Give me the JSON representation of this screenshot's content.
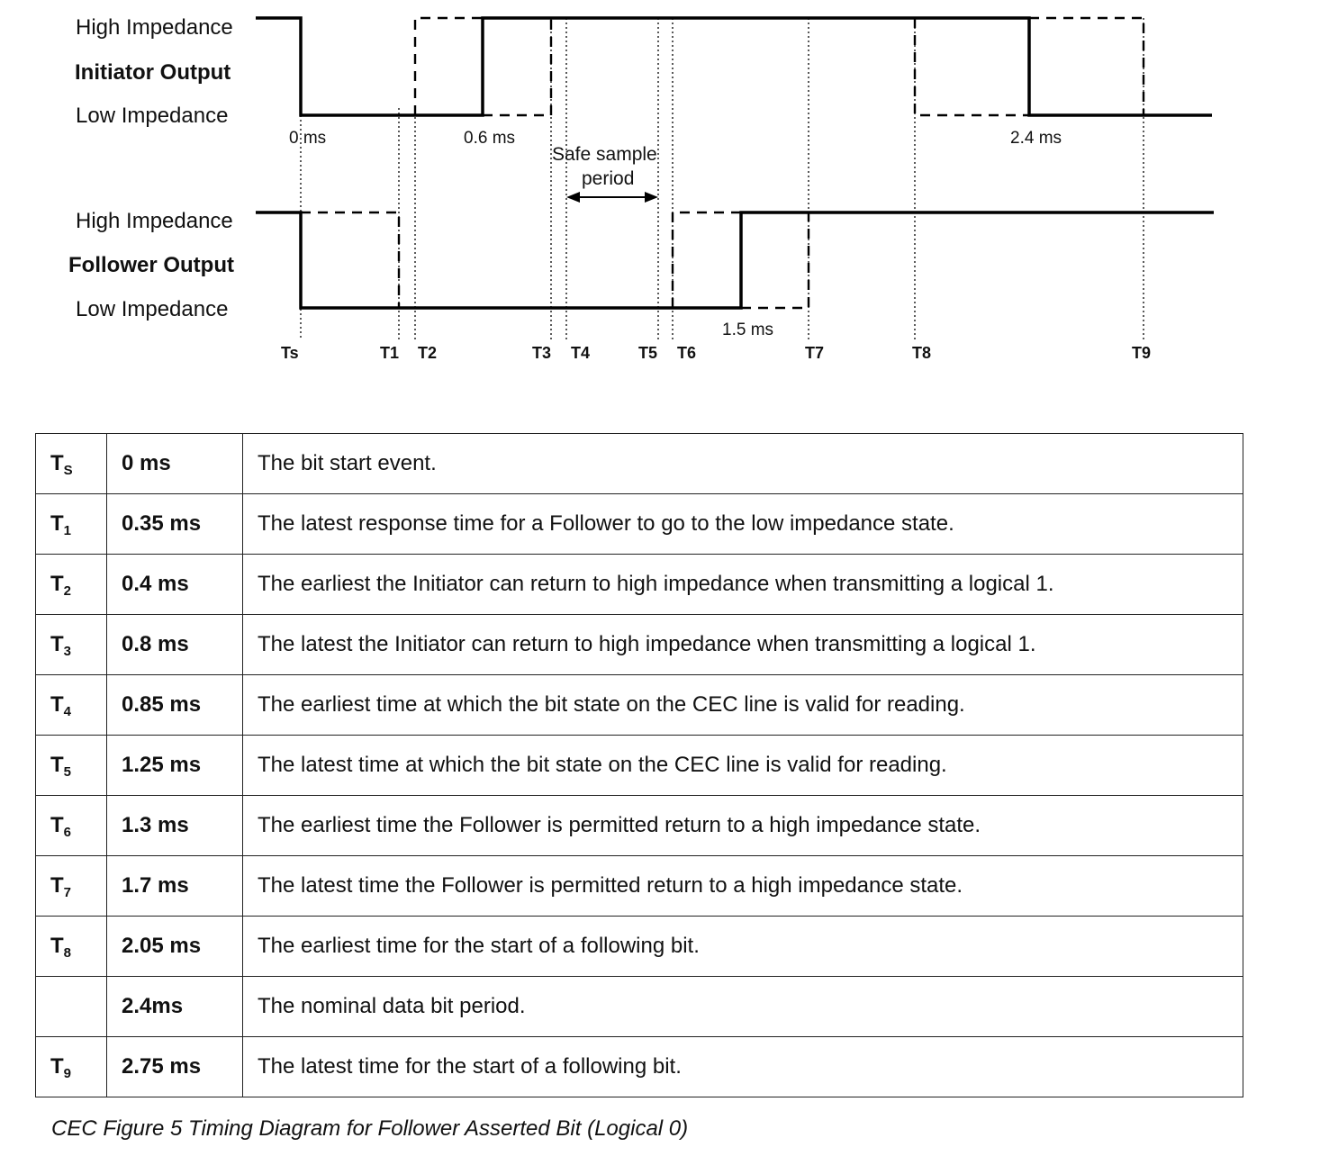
{
  "diagram": {
    "initiator": {
      "high_label": "High Impedance",
      "name": "Initiator Output",
      "low_label": "Low Impedance"
    },
    "follower": {
      "high_label": "High Impedance",
      "name": "Follower Output",
      "low_label": "Low Impedance"
    },
    "annotations": {
      "zero_ms": "0 ms",
      "init_high_time": "0.6 ms",
      "bit_period": "2.4 ms",
      "follower_high_time": "1.5 ms",
      "safe_sample_line1": "Safe sample",
      "safe_sample_line2": "period"
    },
    "time_markers": [
      "Ts",
      "T1",
      "T2",
      "T3",
      "T4",
      "T5",
      "T6",
      "T7",
      "T8",
      "T9"
    ]
  },
  "table": {
    "rows": [
      {
        "sym": "T",
        "sub": "S",
        "time": "0 ms",
        "desc": "The bit start event."
      },
      {
        "sym": "T",
        "sub": "1",
        "time": "0.35 ms",
        "desc": "The latest response time for a Follower to go to the low impedance state."
      },
      {
        "sym": "T",
        "sub": "2",
        "time": "0.4 ms",
        "desc": "The earliest the Initiator can return to high impedance when transmitting a logical 1."
      },
      {
        "sym": "T",
        "sub": "3",
        "time": "0.8 ms",
        "desc": "The latest the Initiator can return to high impedance when transmitting a logical 1."
      },
      {
        "sym": "T",
        "sub": "4",
        "time": "0.85 ms",
        "desc": "The earliest time at which the bit state on the CEC line is valid for reading."
      },
      {
        "sym": "T",
        "sub": "5",
        "time": "1.25 ms",
        "desc": "The latest time at which the bit state on the CEC line is valid for reading."
      },
      {
        "sym": "T",
        "sub": "6",
        "time": "1.3 ms",
        "desc": "The earliest time the Follower is permitted return to a high impedance state."
      },
      {
        "sym": "T",
        "sub": "7",
        "time": "1.7 ms",
        "desc": "The latest time the Follower is permitted return to a high impedance state."
      },
      {
        "sym": "T",
        "sub": "8",
        "time": "2.05 ms",
        "desc": "The earliest time for the start of a following bit."
      },
      {
        "sym": "",
        "sub": "",
        "time": "2.4ms",
        "desc": "The nominal data bit period."
      },
      {
        "sym": "T",
        "sub": "9",
        "time": "2.75 ms",
        "desc": "The latest time for the start of a following bit."
      }
    ]
  },
  "caption": "CEC Figure 5 Timing Diagram for Follower Asserted Bit (Logical 0)"
}
